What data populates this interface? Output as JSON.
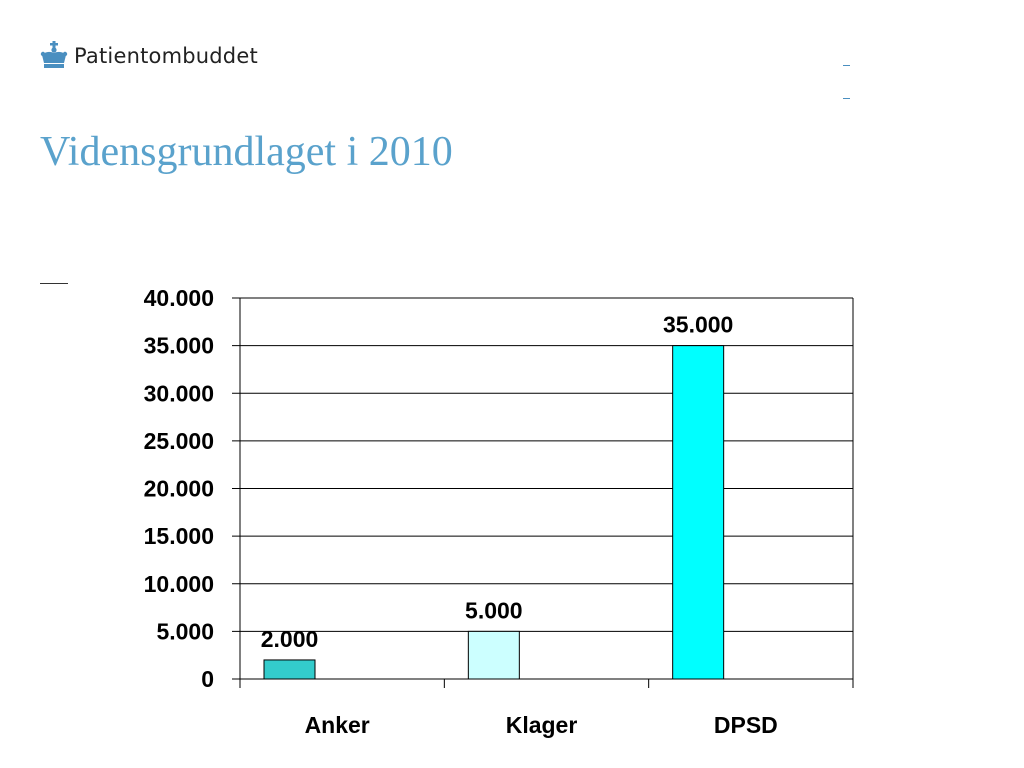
{
  "header": {
    "logo_text": "Patientombuddet",
    "title": "Vidensgrundlaget i 2010"
  },
  "icons": {
    "logo": "crown-icon"
  },
  "colors": {
    "title": "#5aa2cc",
    "brand": "#4a8fc0"
  },
  "chart_data": {
    "type": "bar",
    "categories": [
      "Anker",
      "Klager",
      "DPSD"
    ],
    "values": [
      2000,
      5000,
      35000
    ],
    "value_labels": [
      "2.000",
      "5.000",
      "35.000"
    ],
    "bar_colors": [
      "#33cccc",
      "#ccffff",
      "#00ffff"
    ],
    "ylim": [
      0,
      40000
    ],
    "yticks": [
      0,
      5000,
      10000,
      15000,
      20000,
      25000,
      30000,
      35000,
      40000
    ],
    "ytick_labels": [
      "0",
      "5.000",
      "10.000",
      "15.000",
      "20.000",
      "25.000",
      "30.000",
      "35.000",
      "40.000"
    ],
    "grid": true,
    "legend": "none",
    "title": "",
    "xlabel": "",
    "ylabel": ""
  }
}
